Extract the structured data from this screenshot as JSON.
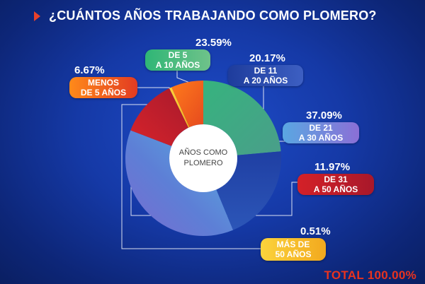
{
  "title": "¿CUÁNTOS AÑOS TRABAJANDO COMO PLOMERO?",
  "center_label": "AÑOS COMO PLOMERO",
  "total": "TOTAL  100.00%",
  "chart_data": {
    "type": "pie",
    "center_text": "AÑOS COMO PLOMERO",
    "slices": [
      {
        "label": "DE 5 A 10 AÑOS",
        "label_line1": "DE 5",
        "label_line2": "A 10 AÑOS",
        "pct_text": "23.59%",
        "value": 23.59,
        "color": "#31b07b"
      },
      {
        "label": "DE 11 A 20 AÑOS",
        "label_line1": "DE 11",
        "label_line2": "A 20 AÑOS",
        "pct_text": "20.17%",
        "value": 20.17,
        "color": "#2343a6"
      },
      {
        "label": "DE 21 A 30 AÑOS",
        "label_line1": "DE 21",
        "label_line2": "A 30 AÑOS",
        "pct_text": "37.09%",
        "value": 37.09,
        "color": "#5a8fd8"
      },
      {
        "label": "DE 31 A 50 AÑOS",
        "label_line1": "DE 31",
        "label_line2": "A 50 AÑOS",
        "pct_text": "11.97%",
        "value": 11.97,
        "color": "#c41f2a"
      },
      {
        "label": "MÁS DE 50 AÑOS",
        "label_line1": "MÁS DE",
        "label_line2": "50 AÑOS",
        "pct_text": "0.51%",
        "value": 0.51,
        "color": "#f7c524"
      },
      {
        "label": "MENOS DE 5 AÑOS",
        "label_line1": "MENOS",
        "label_line2": "DE 5 AÑOS",
        "pct_text": "6.67%",
        "value": 6.67,
        "color": "#ef5a1c"
      }
    ],
    "total_text": "TOTAL  100.00%"
  }
}
